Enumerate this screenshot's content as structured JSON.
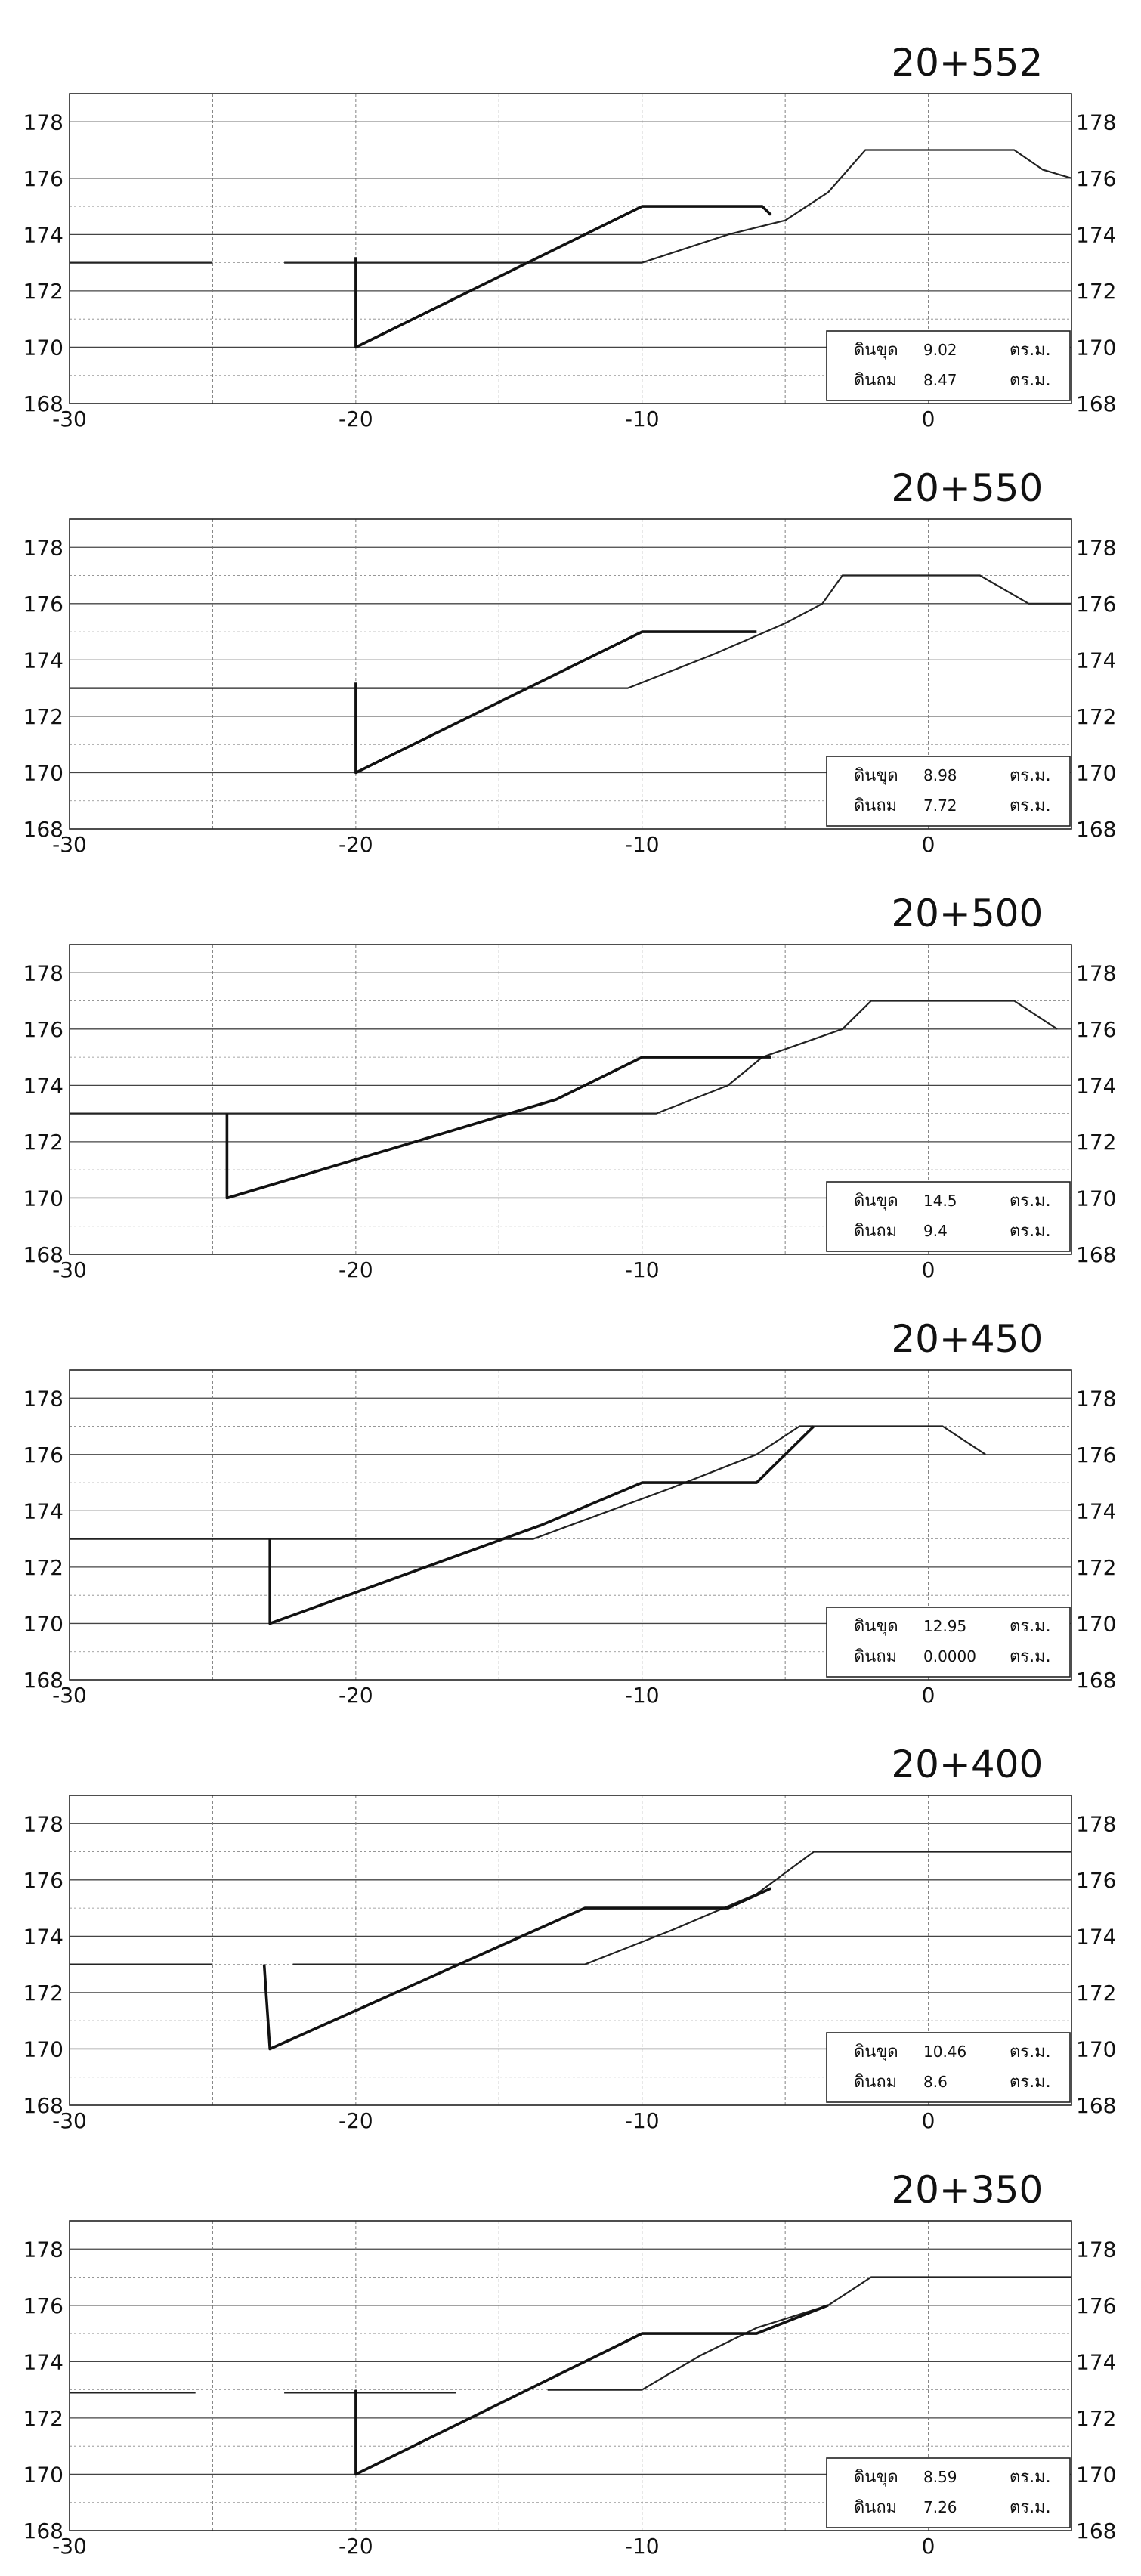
{
  "chart_data": [
    {
      "type": "line",
      "title": "20+552",
      "xlim": [
        -30,
        5
      ],
      "ylim": [
        168,
        179
      ],
      "x_ticks": [
        -30,
        -20,
        -10,
        0
      ],
      "y_ticks": [
        168,
        170,
        172,
        174,
        176,
        178
      ],
      "grid": true,
      "legend_position": "bottom-right",
      "legend": [
        {
          "label": "ดินขุด",
          "value": "9.02",
          "unit": "ตร.ม."
        },
        {
          "label": "ดินถม",
          "value": "8.47",
          "unit": "ตร.ม."
        }
      ],
      "series": [
        {
          "role": "ground",
          "segments": [
            [
              [
                -30,
                173
              ],
              [
                -25,
                173
              ]
            ],
            [
              [
                -22.5,
                173
              ],
              [
                -10,
                173
              ],
              [
                -7,
                174
              ],
              [
                -5,
                174.5
              ],
              [
                -3.5,
                175.5
              ],
              [
                -2.2,
                177
              ],
              [
                3,
                177
              ],
              [
                4,
                176.3
              ],
              [
                5,
                176
              ]
            ]
          ]
        },
        {
          "role": "design",
          "segments": [
            [
              [
                -20,
                173.2
              ],
              [
                -20,
                170
              ],
              [
                -10,
                175
              ],
              [
                -5.8,
                175
              ],
              [
                -5.5,
                174.7
              ]
            ]
          ]
        }
      ]
    },
    {
      "type": "line",
      "title": "20+550",
      "xlim": [
        -30,
        5
      ],
      "ylim": [
        168,
        179
      ],
      "x_ticks": [
        -30,
        -20,
        -10,
        0
      ],
      "y_ticks": [
        168,
        170,
        172,
        174,
        176,
        178
      ],
      "grid": true,
      "legend_position": "bottom-right",
      "legend": [
        {
          "label": "ดินขุด",
          "value": "8.98",
          "unit": "ตร.ม."
        },
        {
          "label": "ดินถม",
          "value": "7.72",
          "unit": "ตร.ม."
        }
      ],
      "series": [
        {
          "role": "ground",
          "segments": [
            [
              [
                -30,
                173
              ],
              [
                -10.5,
                173
              ],
              [
                -7.5,
                174.2
              ],
              [
                -5,
                175.3
              ],
              [
                -3.7,
                176
              ],
              [
                -3,
                177
              ],
              [
                1.8,
                177
              ],
              [
                3.5,
                176
              ],
              [
                5,
                176
              ]
            ]
          ]
        },
        {
          "role": "design",
          "segments": [
            [
              [
                -20,
                173.2
              ],
              [
                -20,
                170
              ],
              [
                -10,
                175
              ],
              [
                -6,
                175
              ]
            ]
          ]
        }
      ]
    },
    {
      "type": "line",
      "title": "20+500",
      "xlim": [
        -30,
        5
      ],
      "ylim": [
        168,
        179
      ],
      "x_ticks": [
        -30,
        -20,
        -10,
        0
      ],
      "y_ticks": [
        168,
        170,
        172,
        174,
        176,
        178
      ],
      "grid": true,
      "legend_position": "bottom-right",
      "legend": [
        {
          "label": "ดินขุด",
          "value": "14.5",
          "unit": "ตร.ม."
        },
        {
          "label": "ดินถม",
          "value": "9.4",
          "unit": "ตร.ม."
        }
      ],
      "series": [
        {
          "role": "ground",
          "segments": [
            [
              [
                -30,
                173
              ],
              [
                -9.5,
                173
              ],
              [
                -7,
                174
              ],
              [
                -5.8,
                175
              ],
              [
                -3,
                176
              ],
              [
                -2,
                177
              ],
              [
                3,
                177
              ],
              [
                4.5,
                176
              ]
            ]
          ]
        },
        {
          "role": "design",
          "segments": [
            [
              [
                -24.5,
                173
              ],
              [
                -24.5,
                170
              ],
              [
                -13,
                173.5
              ],
              [
                -10,
                175
              ],
              [
                -5.5,
                175
              ]
            ]
          ]
        }
      ]
    },
    {
      "type": "line",
      "title": "20+450",
      "xlim": [
        -30,
        5
      ],
      "ylim": [
        168,
        179
      ],
      "x_ticks": [
        -30,
        -20,
        -10,
        0
      ],
      "y_ticks": [
        168,
        170,
        172,
        174,
        176,
        178
      ],
      "grid": true,
      "legend_position": "bottom-right",
      "legend": [
        {
          "label": "ดินขุด",
          "value": "12.95",
          "unit": "ตร.ม."
        },
        {
          "label": "ดินถม",
          "value": "0.0000",
          "unit": "ตร.ม."
        }
      ],
      "series": [
        {
          "role": "ground",
          "segments": [
            [
              [
                -30,
                173
              ],
              [
                -13.8,
                173
              ],
              [
                -9,
                174.8
              ],
              [
                -6,
                176
              ],
              [
                -4.5,
                177
              ],
              [
                0.5,
                177
              ],
              [
                2,
                176
              ]
            ]
          ]
        },
        {
          "role": "design",
          "segments": [
            [
              [
                -23,
                173
              ],
              [
                -23,
                170
              ],
              [
                -13.5,
                173.5
              ],
              [
                -10,
                175
              ],
              [
                -6,
                175
              ],
              [
                -4,
                177
              ]
            ]
          ]
        }
      ]
    },
    {
      "type": "line",
      "title": "20+400",
      "xlim": [
        -30,
        5
      ],
      "ylim": [
        168,
        179
      ],
      "x_ticks": [
        -30,
        -20,
        -10,
        0
      ],
      "y_ticks": [
        168,
        170,
        172,
        174,
        176,
        178
      ],
      "grid": true,
      "legend_position": "bottom-right",
      "legend": [
        {
          "label": "ดินขุด",
          "value": "10.46",
          "unit": "ตร.ม."
        },
        {
          "label": "ดินถม",
          "value": "8.6",
          "unit": "ตร.ม."
        }
      ],
      "series": [
        {
          "role": "ground",
          "segments": [
            [
              [
                -30,
                173
              ],
              [
                -25,
                173
              ]
            ],
            [
              [
                -22.2,
                173
              ],
              [
                -12,
                173
              ],
              [
                -9,
                174.2
              ],
              [
                -6,
                175.5
              ],
              [
                -4,
                177
              ],
              [
                5,
                177
              ]
            ]
          ]
        },
        {
          "role": "design",
          "segments": [
            [
              [
                -23.2,
                173
              ],
              [
                -23,
                170
              ],
              [
                -12,
                175
              ],
              [
                -7,
                175
              ],
              [
                -5.5,
                175.7
              ]
            ]
          ]
        }
      ]
    },
    {
      "type": "line",
      "title": "20+350",
      "xlim": [
        -30,
        5
      ],
      "ylim": [
        168,
        179
      ],
      "x_ticks": [
        -30,
        -20,
        -10,
        0
      ],
      "y_ticks": [
        168,
        170,
        172,
        174,
        176,
        178
      ],
      "grid": true,
      "legend_position": "bottom-right",
      "legend": [
        {
          "label": "ดินขุด",
          "value": "8.59",
          "unit": "ตร.ม."
        },
        {
          "label": "ดินถม",
          "value": "7.26",
          "unit": "ตร.ม."
        }
      ],
      "series": [
        {
          "role": "ground",
          "segments": [
            [
              [
                -30,
                172.9
              ],
              [
                -25.6,
                172.9
              ]
            ],
            [
              [
                -22.5,
                172.9
              ],
              [
                -16.5,
                172.9
              ]
            ],
            [
              [
                -13.3,
                173
              ],
              [
                -10,
                173
              ],
              [
                -8,
                174.2
              ],
              [
                -6,
                175.2
              ],
              [
                -3.5,
                176
              ],
              [
                -2,
                177
              ],
              [
                5,
                177
              ]
            ]
          ]
        },
        {
          "role": "design",
          "segments": [
            [
              [
                -20,
                173
              ],
              [
                -20,
                170
              ],
              [
                -10,
                175
              ],
              [
                -6,
                175
              ],
              [
                -3.5,
                176
              ]
            ]
          ]
        }
      ]
    }
  ]
}
